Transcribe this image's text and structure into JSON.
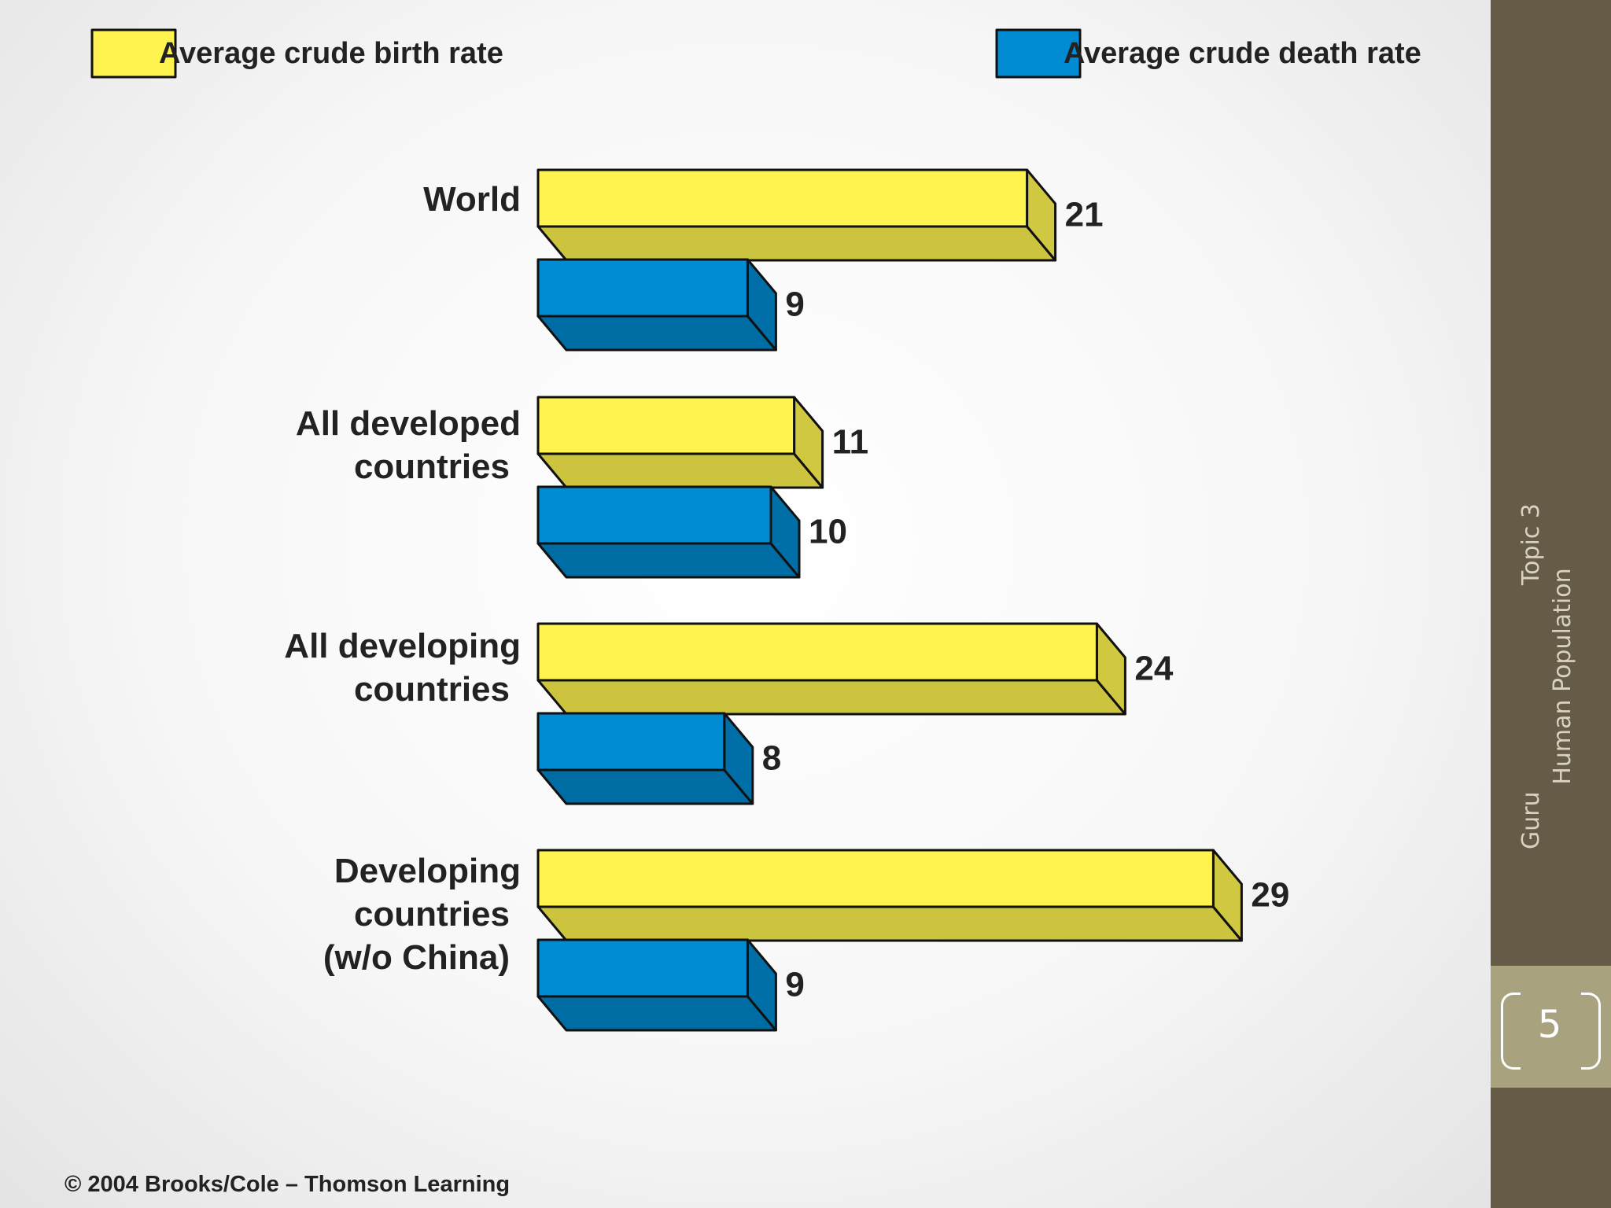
{
  "chart_data": {
    "type": "bar",
    "orientation": "horizontal",
    "style": "3d",
    "categories": [
      [
        "World"
      ],
      [
        "All developed",
        "countries"
      ],
      [
        "All developing",
        "countries"
      ],
      [
        "Developing",
        "countries",
        "(w/o China)"
      ]
    ],
    "series": [
      {
        "name": "Average crude birth rate",
        "color": "#fff44f",
        "values": [
          21,
          11,
          24,
          29
        ]
      },
      {
        "name": "Average crude death rate",
        "color": "#008bd2",
        "values": [
          9,
          10,
          8,
          9
        ]
      }
    ],
    "value_labels": true,
    "grid": false,
    "legend": "top",
    "title": "",
    "xlabel": "",
    "ylabel": ""
  },
  "copyright": "© 2004 Brooks/Cole – Thomson Learning",
  "sidebar": {
    "topic": "Topic 3",
    "author": "Guru",
    "subject": "Human Population",
    "page_number": "5"
  }
}
